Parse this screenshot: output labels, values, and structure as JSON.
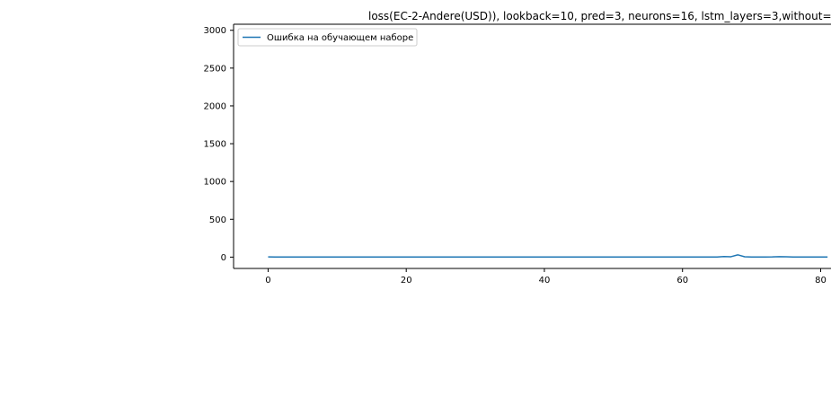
{
  "chart_data": {
    "type": "line",
    "title": "loss(EC-2-Andere(USD)), lookback=10, pred=3, neurons=16, lstm_layers=3,without=",
    "xlabel": "",
    "ylabel": "",
    "xlim": [
      -5,
      81.5
    ],
    "ylim": [
      -150,
      3080
    ],
    "x_ticks": [
      0,
      20,
      40,
      60,
      80
    ],
    "y_ticks": [
      0,
      500,
      1000,
      1500,
      2000,
      2500,
      3000
    ],
    "grid": false,
    "legend_position": "upper-left",
    "series": [
      {
        "name": "Ошибка на обучающем наборе",
        "color": "#1f77b4",
        "x": [
          0,
          1,
          2,
          3,
          4,
          5,
          6,
          7,
          8,
          9,
          10,
          11,
          12,
          13,
          14,
          15,
          16,
          17,
          18,
          19,
          20,
          21,
          22,
          23,
          24,
          25,
          26,
          27,
          28,
          29,
          30,
          31,
          32,
          33,
          34,
          35,
          36,
          37,
          38,
          39,
          40,
          41,
          42,
          43,
          44,
          45,
          46,
          47,
          48,
          49,
          50,
          51,
          52,
          53,
          54,
          55,
          56,
          57,
          58,
          59,
          60,
          61,
          62,
          63,
          64,
          65,
          66,
          67,
          68,
          69,
          70,
          71,
          72,
          73,
          74,
          75,
          76,
          77,
          78,
          79,
          80,
          81
        ],
        "values": [
          3,
          2,
          2,
          2,
          2,
          2,
          2,
          2,
          2,
          2,
          2,
          2,
          2,
          2,
          2,
          2,
          2,
          2,
          2,
          2,
          2,
          2,
          2,
          2,
          2,
          2,
          2,
          2,
          2,
          2,
          2,
          2,
          2,
          2,
          2,
          2,
          2,
          2,
          2,
          2,
          2,
          2,
          2,
          2,
          2,
          2,
          2,
          2,
          2,
          2,
          2,
          2,
          2,
          2,
          2,
          2,
          2,
          2,
          2,
          2,
          2,
          2,
          2,
          2,
          2,
          2,
          8,
          5,
          30,
          4,
          2,
          2,
          2,
          3,
          6,
          4,
          2,
          2,
          2,
          2,
          2,
          2
        ]
      }
    ]
  }
}
